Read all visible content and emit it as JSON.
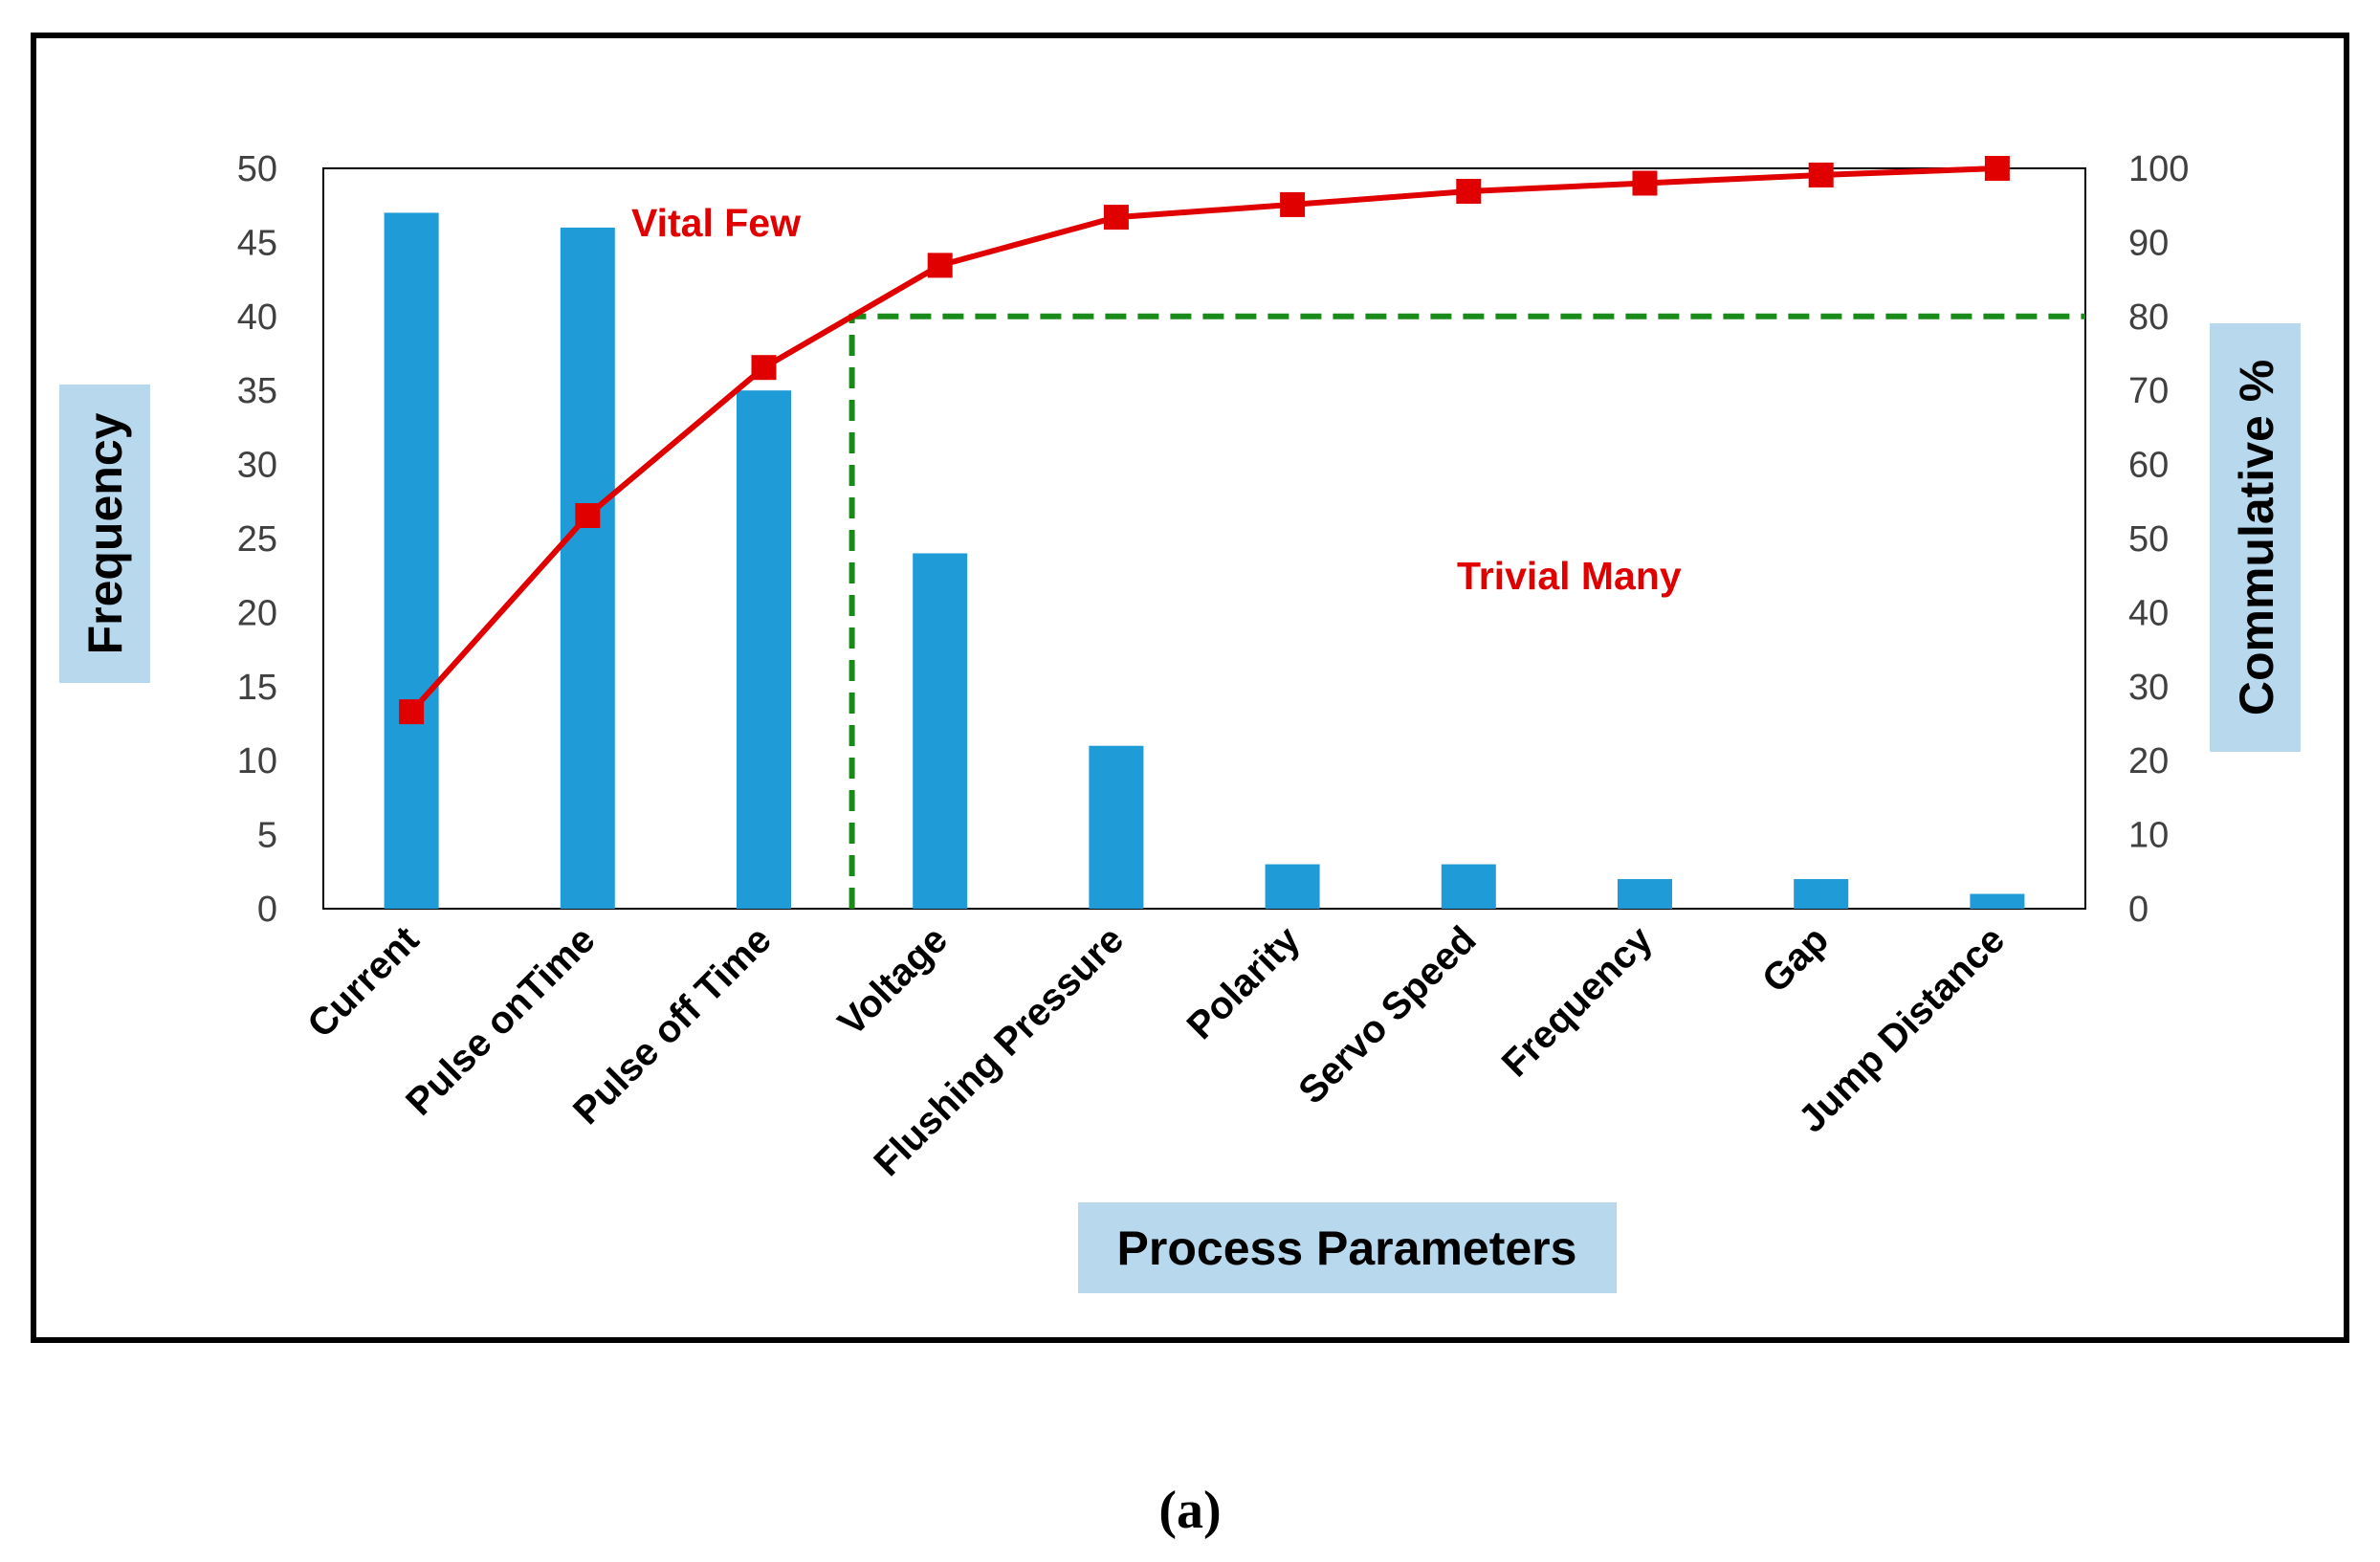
{
  "chart_data": {
    "type": "bar",
    "title": "",
    "xlabel": "Process Parameters",
    "ylabel": "Frequency",
    "y2label": "Commulative %",
    "categories": [
      "Current",
      "Pulse onTime",
      "Pulse off Time",
      "Voltage",
      "Flushing Pressure",
      "Polarity",
      "Servo Speed",
      "Frequency",
      "Gap",
      "Jump Distance"
    ],
    "series": [
      {
        "name": "Frequency",
        "type": "bar",
        "axis": "left",
        "values": [
          47,
          46,
          35,
          24,
          11,
          3,
          3,
          2,
          2,
          1
        ]
      },
      {
        "name": "Cumulative %",
        "type": "line",
        "axis": "right",
        "values": [
          26.6,
          53.1,
          73.1,
          86.9,
          93.4,
          95.1,
          96.9,
          98.0,
          99.1,
          100
        ]
      }
    ],
    "threshold_line": {
      "value": 80,
      "axis": "right",
      "style": "dashed"
    },
    "ylim": [
      0,
      50
    ],
    "y2lim": [
      0,
      100
    ],
    "yticks": [
      0,
      5,
      10,
      15,
      20,
      25,
      30,
      35,
      40,
      45,
      50
    ],
    "y2ticks": [
      0,
      10,
      20,
      30,
      40,
      50,
      60,
      70,
      80,
      90,
      100
    ],
    "grid": false,
    "annotations": {
      "vital": "Vital Few",
      "trivial": "Trivial Many"
    },
    "colors": {
      "bar": "#1f9bd7",
      "line": "#e00000",
      "threshold": "#1a8a1a",
      "annotation": "#e00000",
      "label_bg": "#b8d8ee"
    }
  },
  "caption": "(a)"
}
